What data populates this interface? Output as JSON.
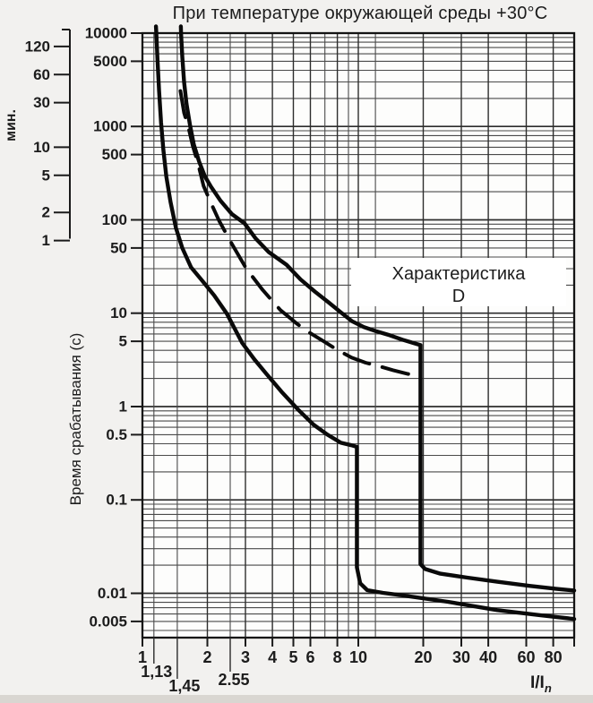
{
  "title": "При температуре окружающей среды +30°C",
  "annotation": {
    "line1": "Характеристика",
    "line2": "D"
  },
  "axes": {
    "y_label": "Время срабатывания (с)",
    "minutes_label": "мин.",
    "x_label_main": "I/I",
    "x_label_sub": "n",
    "y_ticks_seconds": [
      {
        "v": 10000,
        "label": "10000"
      },
      {
        "v": 5000,
        "label": "5000"
      },
      {
        "v": 1000,
        "label": "1000"
      },
      {
        "v": 500,
        "label": "500"
      },
      {
        "v": 100,
        "label": "100"
      },
      {
        "v": 50,
        "label": "50"
      },
      {
        "v": 10,
        "label": "10"
      },
      {
        "v": 5,
        "label": "5"
      },
      {
        "v": 1,
        "label": "1"
      },
      {
        "v": 0.5,
        "label": "0.5"
      },
      {
        "v": 0.1,
        "label": "0.1"
      },
      {
        "v": 0.01,
        "label": "0.01"
      },
      {
        "v": 0.005,
        "label": "0.005"
      }
    ],
    "y_ticks_minutes": [
      {
        "v": 120,
        "label": "120"
      },
      {
        "v": 60,
        "label": "60"
      },
      {
        "v": 30,
        "label": "30"
      },
      {
        "v": 10,
        "label": "10"
      },
      {
        "v": 5,
        "label": "5"
      },
      {
        "v": 2,
        "label": "2"
      },
      {
        "v": 1,
        "label": "1"
      }
    ],
    "x_ticks": [
      {
        "v": 1,
        "label": "1"
      },
      {
        "v": 2,
        "label": "2"
      },
      {
        "v": 3,
        "label": "3"
      },
      {
        "v": 4,
        "label": "4"
      },
      {
        "v": 5,
        "label": "5"
      },
      {
        "v": 6,
        "label": "6"
      },
      {
        "v": 8,
        "label": "8"
      },
      {
        "v": 10,
        "label": "10"
      },
      {
        "v": 20,
        "label": "20"
      },
      {
        "v": 30,
        "label": "30"
      },
      {
        "v": 40,
        "label": "40"
      },
      {
        "v": 60,
        "label": "60"
      },
      {
        "v": 80,
        "label": "80"
      },
      {
        "v": 100,
        "label": ""
      }
    ],
    "x_sub_ticks": [
      {
        "v": 1.13,
        "label": "1,13"
      },
      {
        "v": 1.45,
        "label": "1,45"
      },
      {
        "v": 2.55,
        "label": "2.55"
      }
    ]
  },
  "grid": {
    "x_lines": [
      1.13,
      1.45,
      2,
      2.55,
      3,
      4,
      5,
      6,
      7,
      8,
      9,
      10,
      12,
      20,
      30,
      40,
      60,
      80
    ],
    "x_main_lines": [
      2,
      3,
      4,
      5,
      6,
      8,
      10,
      20,
      30,
      40,
      60,
      80
    ]
  },
  "colors": {
    "background": "#f2f1ef",
    "plot_background": "#fdfdfc",
    "grid_line": "#4a4a4a",
    "frame": "#141414",
    "curve": "#0a0a0a",
    "text": "#1c1c1c",
    "annotation_background": "#ffffff"
  },
  "chart_data": {
    "type": "line",
    "title": "При температуре окружающей среды +30°C",
    "xlabel": "I/In",
    "ylabel": "Время срабатывания (с)",
    "x_scale": "log",
    "y_scale": "log",
    "xlim": [
      1,
      100
    ],
    "ylim": [
      0.00335,
      10000
    ],
    "grid": true,
    "legend_position": "none",
    "annotation": "Характеристика D",
    "instantaneous_trip_multiples": [
      10,
      20
    ],
    "series": [
      {
        "name": "lower-band-curve",
        "style": "solid",
        "points": [
          [
            1.155,
            11800
          ],
          [
            1.16,
            10000
          ],
          [
            1.175,
            5000
          ],
          [
            1.195,
            2400
          ],
          [
            1.22,
            1100
          ],
          [
            1.25,
            560
          ],
          [
            1.29,
            290
          ],
          [
            1.35,
            155
          ],
          [
            1.43,
            82
          ],
          [
            1.53,
            50
          ],
          [
            1.68,
            31
          ],
          [
            1.9,
            22
          ],
          [
            2.15,
            15.5
          ],
          [
            2.46,
            9.9
          ],
          [
            2.9,
            4.8
          ],
          [
            3.3,
            3.2
          ],
          [
            3.74,
            2.26
          ],
          [
            4.4,
            1.45
          ],
          [
            5.23,
            0.94
          ],
          [
            6.2,
            0.64
          ],
          [
            7.2,
            0.5
          ],
          [
            8.3,
            0.41
          ],
          [
            9.3,
            0.385
          ],
          [
            9.85,
            0.37
          ],
          [
            9.85,
            0.019
          ],
          [
            10.2,
            0.0128
          ],
          [
            11,
            0.0108
          ],
          [
            13,
            0.0101
          ],
          [
            16,
            0.0095
          ],
          [
            26,
            0.0081
          ],
          [
            44,
            0.0066
          ],
          [
            70,
            0.0058
          ],
          [
            100,
            0.0053
          ]
        ]
      },
      {
        "name": "upper-band-curve",
        "style": "solid",
        "points": [
          [
            1.507,
            11800
          ],
          [
            1.51,
            10000
          ],
          [
            1.53,
            5600
          ],
          [
            1.56,
            3000
          ],
          [
            1.6,
            1750
          ],
          [
            1.66,
            1050
          ],
          [
            1.73,
            640
          ],
          [
            1.83,
            420
          ],
          [
            1.95,
            290
          ],
          [
            2.07,
            230
          ],
          [
            2.3,
            160
          ],
          [
            2.6,
            115
          ],
          [
            2.97,
            92
          ],
          [
            3.35,
            63
          ],
          [
            3.85,
            45
          ],
          [
            4.65,
            33
          ],
          [
            5.4,
            23
          ],
          [
            6.3,
            17
          ],
          [
            7.3,
            13
          ],
          [
            8.3,
            10.2
          ],
          [
            9.35,
            8.2
          ],
          [
            10.6,
            7.1
          ],
          [
            12.1,
            6.4
          ],
          [
            14,
            5.8
          ],
          [
            16,
            5.2
          ],
          [
            18,
            4.8
          ],
          [
            19.4,
            4.55
          ],
          [
            19.4,
            0.0205
          ],
          [
            20.4,
            0.0182
          ],
          [
            24,
            0.0162
          ],
          [
            32,
            0.0147
          ],
          [
            44,
            0.0133
          ],
          [
            62,
            0.012
          ],
          [
            82,
            0.0112
          ],
          [
            100,
            0.0107
          ]
        ]
      },
      {
        "name": "average-curve-dashed",
        "style": "dashed",
        "points": [
          [
            1.5,
            2400
          ],
          [
            1.56,
            1400
          ],
          [
            1.63,
            1000
          ],
          [
            1.71,
            620
          ],
          [
            1.81,
            400
          ],
          [
            1.92,
            230
          ],
          [
            2.08,
            150
          ],
          [
            2.27,
            97
          ],
          [
            2.6,
            55
          ],
          [
            3.03,
            30
          ],
          [
            3.6,
            17.8
          ],
          [
            4.36,
            10.8
          ],
          [
            5.2,
            7.7
          ],
          [
            6.0,
            6.1
          ],
          [
            6.96,
            4.95
          ],
          [
            8.0,
            4.05
          ],
          [
            9.3,
            3.35
          ],
          [
            10.8,
            2.95
          ],
          [
            12.5,
            2.7
          ],
          [
            14.5,
            2.45
          ],
          [
            16.8,
            2.25
          ],
          [
            19.35,
            2.1
          ]
        ]
      }
    ]
  }
}
